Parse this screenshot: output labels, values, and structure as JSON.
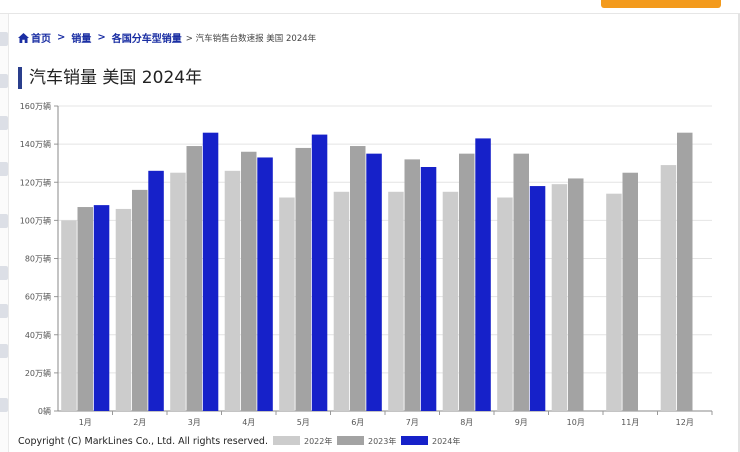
{
  "breadcrumb": {
    "home": "首页",
    "sep1": ">",
    "item1": "销量",
    "sep2": ">",
    "item2": "各国分车型销量",
    "current": "> 汽车销售台数速报 美国 2024年"
  },
  "page_title": "汽车销量 美国 2024年",
  "footer": {
    "copyright": "Copyright (C) MarkLines Co., Ltd. All rights reserved."
  },
  "colors": {
    "accent": "#2a3e8c",
    "link": "#1a2ea3",
    "orange_button": "#f39a1c"
  },
  "chart_data": {
    "type": "bar",
    "categories": [
      "1月",
      "2月",
      "3月",
      "4月",
      "5月",
      "6月",
      "7月",
      "8月",
      "9月",
      "10月",
      "11月",
      "12月"
    ],
    "ylim": [
      0,
      1600000
    ],
    "yticks": [
      {
        "value": 0,
        "label": "0辆"
      },
      {
        "value": 200000,
        "label": "20万辆"
      },
      {
        "value": 400000,
        "label": "40万辆"
      },
      {
        "value": 600000,
        "label": "60万辆"
      },
      {
        "value": 800000,
        "label": "80万辆"
      },
      {
        "value": 1000000,
        "label": "100万辆"
      },
      {
        "value": 1200000,
        "label": "120万辆"
      },
      {
        "value": 1400000,
        "label": "140万辆"
      },
      {
        "value": 1600000,
        "label": "160万辆"
      }
    ],
    "grid": true,
    "legend_position": "bottom",
    "series": [
      {
        "name": "2022年",
        "color": "#cccccc",
        "values": [
          1000000,
          1060000,
          1250000,
          1260000,
          1120000,
          1150000,
          1150000,
          1150000,
          1120000,
          1190000,
          1140000,
          1290000
        ]
      },
      {
        "name": "2023年",
        "color": "#a3a3a3",
        "values": [
          1070000,
          1160000,
          1390000,
          1360000,
          1380000,
          1390000,
          1320000,
          1350000,
          1350000,
          1220000,
          1250000,
          1460000
        ]
      },
      {
        "name": "2024年",
        "color": "#1621c9",
        "values": [
          1080000,
          1260000,
          1460000,
          1330000,
          1450000,
          1350000,
          1280000,
          1430000,
          1180000,
          null,
          null,
          null
        ]
      }
    ]
  }
}
